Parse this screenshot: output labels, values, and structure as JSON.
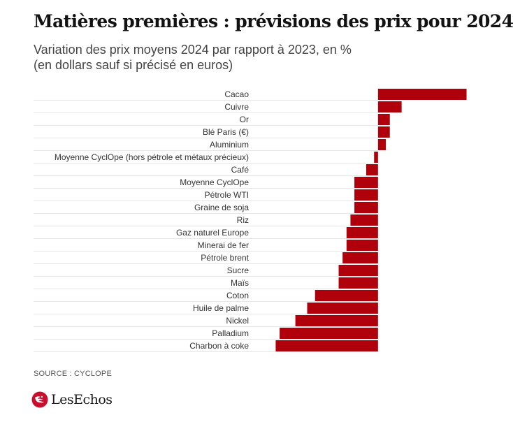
{
  "title": "Matières premières : prévisions des prix pour 2024",
  "subtitle_line1": "Variation des prix moyens 2024 par rapport à 2023, en %",
  "subtitle_line2": "(en dollars sauf si précisé en euros)",
  "source": "SOURCE : CYCLOPE",
  "logo": {
    "text": "LesEchos",
    "icon": "les-echos-logo-mark",
    "color": "#c8102e"
  },
  "colors": {
    "bar": "#b0000c",
    "gridline": "#e6e6e6",
    "axis_label": "#333333"
  },
  "chart_data": {
    "type": "bar",
    "orientation": "horizontal",
    "categories": [
      "Cacao",
      "Cuivre",
      "Or",
      "Blé Paris (€)",
      "Aluminium",
      "Moyenne CyclOpe (hors pétrole et métaux précieux)",
      "Café",
      "Moyenne CyclOpe",
      "Pétrole WTI",
      "Graine de soja",
      "Riz",
      "Gaz naturel Europe",
      "Minerai de fer",
      "Pétrole brent",
      "Sucre",
      "Maïs",
      "Coton",
      "Huile de palme",
      "Nickel",
      "Palladium",
      "Charbon à coke"
    ],
    "values": [
      45,
      12,
      6,
      6,
      4,
      -2,
      -6,
      -12,
      -12,
      -12,
      -14,
      -16,
      -16,
      -18,
      -20,
      -20,
      -32,
      -36,
      -42,
      -50,
      -52
    ],
    "xlim": [
      -55,
      48
    ],
    "xlabel": "",
    "ylabel": "",
    "grid": true,
    "legend": "none",
    "data_labels": false
  }
}
